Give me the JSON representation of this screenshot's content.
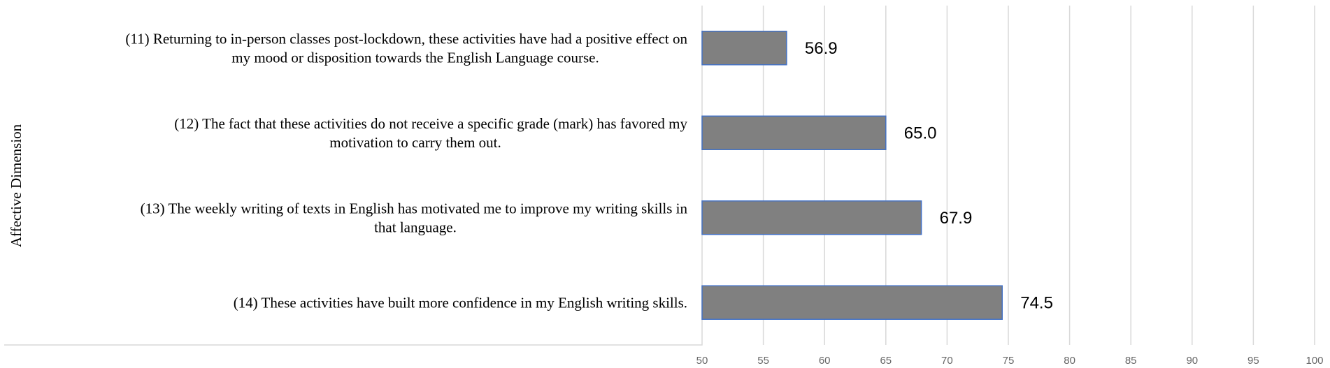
{
  "chart_data": {
    "type": "bar",
    "orientation": "horizontal",
    "categories": [
      [
        "(11) Returning to in-person classes post-lockdown, these activities have had a positive effect on",
        "my mood or disposition towards the English Language course."
      ],
      [
        "(12) The fact that these activities do not receive a specific grade (mark) has favored my",
        "motivation to carry them out."
      ],
      [
        "(13) The weekly writing of texts in English has motivated me to improve my writing skills in",
        "that language."
      ],
      [
        "(14) These activities have built more confidence in my English writing skills."
      ]
    ],
    "values": [
      56.9,
      65.0,
      67.9,
      74.5
    ],
    "value_labels": [
      "56.9",
      "65.0",
      "67.9",
      "74.5"
    ],
    "ylabel": "Affective Dimension",
    "xlim": [
      50,
      100
    ],
    "x_ticks": [
      "50",
      "55",
      "60",
      "65",
      "70",
      "75",
      "80",
      "85",
      "90",
      "95",
      "100"
    ],
    "grid": true,
    "colors": {
      "bar_fill": "#808080",
      "bar_stroke": "#4472c4",
      "grid": "#d9d9d9",
      "tick_text": "#666666"
    }
  }
}
